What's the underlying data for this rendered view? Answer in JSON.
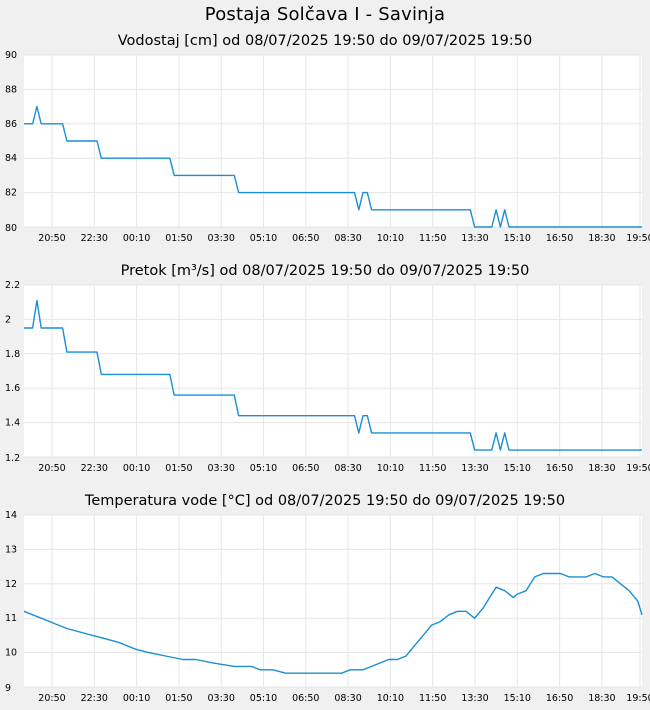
{
  "page": {
    "title": "Postaja Solčava I - Savinja"
  },
  "chart_data": [
    {
      "type": "line",
      "title": "Vodostaj [cm] od 08/07/2025 19:50 do 09/07/2025 19:50",
      "color": "#1a8fd6",
      "xticks": [
        "20:50",
        "22:30",
        "00:10",
        "01:50",
        "03:30",
        "05:10",
        "06:50",
        "08:30",
        "10:10",
        "11:50",
        "13:30",
        "15:10",
        "16:50",
        "18:30",
        "19:50"
      ],
      "ylim": [
        80,
        90
      ],
      "yticks": [
        "90",
        "88",
        "86",
        "84",
        "82",
        "80"
      ],
      "grid": true,
      "series": [
        {
          "x": [
            "19:50",
            "20:10",
            "20:20",
            "20:30",
            "21:00",
            "21:20",
            "21:30",
            "22:40",
            "22:50",
            "23:00",
            "01:30",
            "01:40",
            "01:50",
            "04:00",
            "04:10",
            "04:20",
            "08:40",
            "08:50",
            "09:00",
            "09:10",
            "09:20",
            "09:30",
            "09:40",
            "13:10",
            "13:20",
            "14:00",
            "14:10",
            "14:20",
            "14:30",
            "14:40",
            "19:50"
          ],
          "y": [
            86,
            86,
            87,
            86,
            86,
            86,
            85,
            85,
            84,
            84,
            84,
            83,
            83,
            83,
            82,
            82,
            82,
            81,
            82,
            82,
            81,
            81,
            81,
            81,
            80,
            80,
            81,
            80,
            81,
            80,
            80
          ]
        }
      ]
    },
    {
      "type": "line",
      "title": "Pretok [m³/s] od 08/07/2025 19:50 do 09/07/2025 19:50",
      "color": "#1a8fd6",
      "xticks": [
        "20:50",
        "22:30",
        "00:10",
        "01:50",
        "03:30",
        "05:10",
        "06:50",
        "08:30",
        "10:10",
        "11:50",
        "13:30",
        "15:10",
        "16:50",
        "18:30",
        "19:50"
      ],
      "ylim": [
        1.2,
        2.2
      ],
      "yticks": [
        "2.2",
        "2",
        "1.8",
        "1.6",
        "1.4",
        "1.2"
      ],
      "grid": true,
      "series": [
        {
          "x": [
            "19:50",
            "20:10",
            "20:20",
            "20:30",
            "21:00",
            "21:20",
            "21:30",
            "22:40",
            "22:50",
            "23:00",
            "01:30",
            "01:40",
            "01:50",
            "04:00",
            "04:10",
            "04:20",
            "08:40",
            "08:50",
            "09:00",
            "09:10",
            "09:20",
            "09:30",
            "09:40",
            "13:10",
            "13:20",
            "14:00",
            "14:10",
            "14:20",
            "14:30",
            "14:40",
            "19:50"
          ],
          "y": [
            1.95,
            1.95,
            2.11,
            1.95,
            1.95,
            1.95,
            1.81,
            1.81,
            1.68,
            1.68,
            1.68,
            1.56,
            1.56,
            1.56,
            1.44,
            1.44,
            1.44,
            1.34,
            1.44,
            1.44,
            1.34,
            1.34,
            1.34,
            1.34,
            1.24,
            1.24,
            1.34,
            1.24,
            1.34,
            1.24,
            1.24
          ]
        }
      ]
    },
    {
      "type": "line",
      "title": "Temperatura vode [°C] od 08/07/2025 19:50 do 09/07/2025 19:50",
      "color": "#1a8fd6",
      "xticks": [
        "20:50",
        "22:30",
        "00:10",
        "01:50",
        "03:30",
        "05:10",
        "06:50",
        "08:30",
        "10:10",
        "11:50",
        "13:30",
        "15:10",
        "16:50",
        "18:30",
        "19:50"
      ],
      "ylim": [
        9,
        14
      ],
      "yticks": [
        "14",
        "13",
        "12",
        "11",
        "10",
        "9"
      ],
      "grid": true,
      "series": [
        {
          "x": [
            "19:50",
            "20:10",
            "20:30",
            "20:50",
            "21:10",
            "21:30",
            "22:00",
            "22:30",
            "23:00",
            "23:30",
            "00:10",
            "00:40",
            "01:20",
            "02:00",
            "02:30",
            "03:10",
            "04:00",
            "04:40",
            "05:00",
            "05:30",
            "06:00",
            "06:30",
            "07:00",
            "07:40",
            "08:10",
            "08:30",
            "09:00",
            "09:20",
            "09:40",
            "10:00",
            "10:20",
            "10:40",
            "11:00",
            "11:20",
            "11:40",
            "12:00",
            "12:20",
            "12:40",
            "13:00",
            "13:20",
            "13:40",
            "14:00",
            "14:10",
            "14:30",
            "14:50",
            "15:00",
            "15:20",
            "15:40",
            "16:00",
            "16:20",
            "16:40",
            "17:00",
            "17:20",
            "17:40",
            "18:00",
            "18:20",
            "18:40",
            "19:00",
            "19:20",
            "19:40",
            "19:50"
          ],
          "y": [
            11.2,
            11.1,
            11.0,
            10.9,
            10.8,
            10.7,
            10.6,
            10.5,
            10.4,
            10.3,
            10.1,
            10.0,
            9.9,
            9.8,
            9.8,
            9.7,
            9.6,
            9.6,
            9.5,
            9.5,
            9.4,
            9.4,
            9.4,
            9.4,
            9.4,
            9.5,
            9.5,
            9.6,
            9.7,
            9.8,
            9.8,
            9.9,
            10.2,
            10.5,
            10.8,
            10.9,
            11.1,
            11.2,
            11.2,
            11.0,
            11.3,
            11.7,
            11.9,
            11.8,
            11.6,
            11.7,
            11.8,
            12.2,
            12.3,
            12.3,
            12.3,
            12.2,
            12.2,
            12.2,
            12.3,
            12.2,
            12.2,
            12.0,
            11.8,
            11.5,
            11.1
          ]
        }
      ]
    }
  ]
}
